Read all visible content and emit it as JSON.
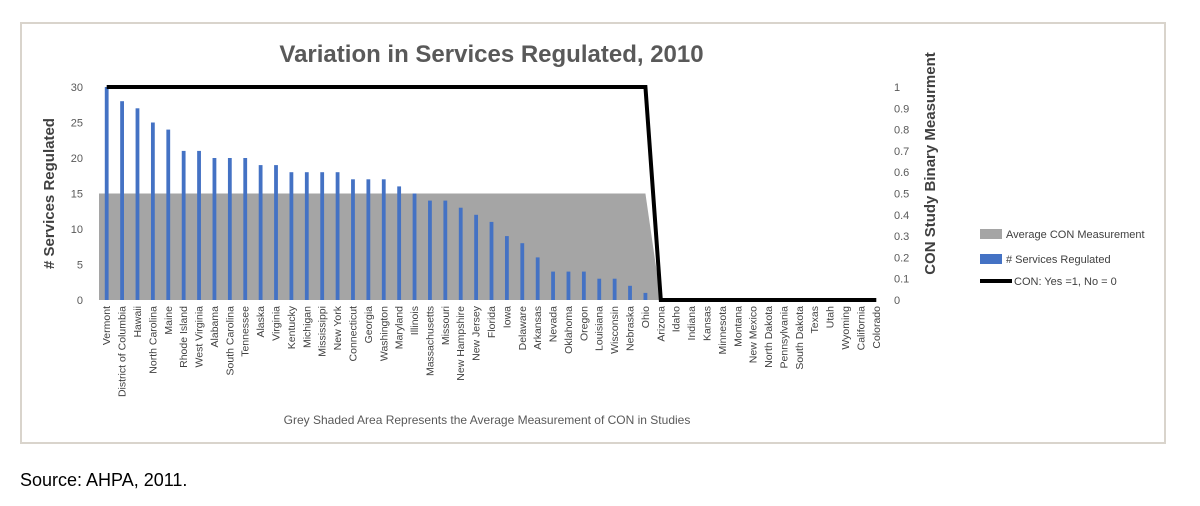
{
  "chart_data": {
    "type": "bar",
    "title": "Variation in Services Regulated, 2010",
    "ylabel": "# Services Regulated",
    "y2label": "CON Study Binary Measurment",
    "ylim": [
      0,
      30
    ],
    "y2lim": [
      0,
      1
    ],
    "yticks": [
      "0",
      "5",
      "10",
      "15",
      "20",
      "25",
      "30"
    ],
    "y2ticks": [
      "0",
      "0.1",
      "0.2",
      "0.3",
      "0.4",
      "0.5",
      "0.6",
      "0.7",
      "0.8",
      "0.9",
      "1"
    ],
    "note": "Grey Shaded Area Represents the Average Measurement of CON in Studies",
    "categories": [
      "Vermont",
      "District of Columbia",
      "Hawaii",
      "North Carolina",
      "Maine",
      "Rhode Island",
      "West Virginia",
      "Alabama",
      "South Carolina",
      "Tennessee",
      "Alaska",
      "Virginia",
      "Kentucky",
      "Michigan",
      "Mississippi",
      "New York",
      "Connecticut",
      "Georgia",
      "Washington",
      "Maryland",
      "Illinois",
      "Massachusetts",
      "Missouri",
      "New Hampshire",
      "New Jersey",
      "Florida",
      "Iowa",
      "Delaware",
      "Arkansas",
      "Nevada",
      "Oklahoma",
      "Oregon",
      "Louisiana",
      "Wisconsin",
      "Nebraska",
      "Ohio",
      "Arizona",
      "Idaho",
      "Indiana",
      "Kansas",
      "Minnesota",
      "Montana",
      "New Mexico",
      "North Dakota",
      "Pennsylvania",
      "South Dakota",
      "Texas",
      "Utah",
      "Wyoming",
      "California",
      "Colorado"
    ],
    "series": [
      {
        "name": "Average CON Measurement",
        "kind": "area",
        "axis": "right",
        "color": "#a5a5a5",
        "values": [
          0.5,
          0.5,
          0.5,
          0.5,
          0.5,
          0.5,
          0.5,
          0.5,
          0.5,
          0.5,
          0.5,
          0.5,
          0.5,
          0.5,
          0.5,
          0.5,
          0.5,
          0.5,
          0.5,
          0.5,
          0.5,
          0.5,
          0.5,
          0.5,
          0.5,
          0.5,
          0.5,
          0.5,
          0.5,
          0.5,
          0.5,
          0.5,
          0.5,
          0.5,
          0.5,
          0.5,
          0,
          0,
          0,
          0,
          0,
          0,
          0,
          0,
          0,
          0,
          0,
          0,
          0,
          0,
          0
        ]
      },
      {
        "name": "# Services Regulated",
        "kind": "bar",
        "axis": "left",
        "color": "#4472c4",
        "values": [
          30,
          28,
          27,
          25,
          24,
          21,
          21,
          20,
          20,
          20,
          19,
          19,
          18,
          18,
          18,
          18,
          17,
          17,
          17,
          16,
          15,
          14,
          14,
          13,
          12,
          11,
          9,
          8,
          6,
          4,
          4,
          4,
          3,
          3,
          2,
          1,
          0,
          0,
          0,
          0,
          0,
          0,
          0,
          0,
          0,
          0,
          0,
          0,
          0,
          0,
          0
        ]
      },
      {
        "name": "CON: Yes =1, No = 0",
        "kind": "line",
        "axis": "right",
        "color": "#000000",
        "values": [
          1,
          1,
          1,
          1,
          1,
          1,
          1,
          1,
          1,
          1,
          1,
          1,
          1,
          1,
          1,
          1,
          1,
          1,
          1,
          1,
          1,
          1,
          1,
          1,
          1,
          1,
          1,
          1,
          1,
          1,
          1,
          1,
          1,
          1,
          1,
          1,
          0,
          0,
          0,
          0,
          0,
          0,
          0,
          0,
          0,
          0,
          0,
          0,
          0,
          0,
          0
        ]
      }
    ],
    "legend": {
      "position": "right",
      "entries": [
        "Average CON Measurement",
        "# Services Regulated",
        "CON: Yes =1, No = 0"
      ]
    },
    "grid": false
  },
  "source": "Source: AHPA, 2011."
}
